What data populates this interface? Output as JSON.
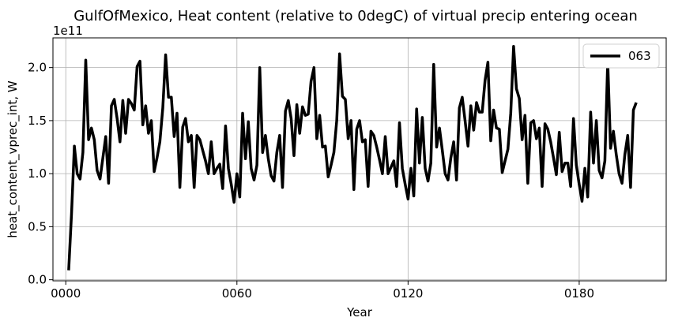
{
  "chart_data": {
    "type": "line",
    "title": "GulfOfMexico, Heat content (relative to 0degC) of virtual precip entering ocean",
    "xlabel": "Year",
    "ylabel": "heat_content_vprec_int, W",
    "y_scale_label": "1e11",
    "x_ticks": [
      "0000",
      "0060",
      "0120",
      "0180"
    ],
    "y_ticks": [
      "0.0",
      "0.5",
      "1.0",
      "1.5",
      "2.0"
    ],
    "xlim": [
      -4.5,
      210.5
    ],
    "ylim": [
      -0.01,
      2.28
    ],
    "grid": true,
    "legend_position": "top-right",
    "series": [
      {
        "name": "063",
        "color": "#000000",
        "x": [
          1,
          2,
          3,
          4,
          5,
          6,
          7,
          8,
          9,
          10,
          11,
          12,
          13,
          14,
          15,
          16,
          17,
          18,
          19,
          20,
          21,
          22,
          23,
          24,
          25,
          26,
          27,
          28,
          29,
          30,
          31,
          32,
          33,
          34,
          35,
          36,
          37,
          38,
          39,
          40,
          41,
          42,
          43,
          44,
          45,
          46,
          47,
          48,
          49,
          50,
          51,
          52,
          53,
          54,
          55,
          56,
          57,
          58,
          59,
          60,
          61,
          62,
          63,
          64,
          65,
          66,
          67,
          68,
          69,
          70,
          71,
          72,
          73,
          74,
          75,
          76,
          77,
          78,
          79,
          80,
          81,
          82,
          83,
          84,
          85,
          86,
          87,
          88,
          89,
          90,
          91,
          92,
          93,
          94,
          95,
          96,
          97,
          98,
          99,
          100,
          101,
          102,
          103,
          104,
          105,
          106,
          107,
          108,
          109,
          110,
          111,
          112,
          113,
          114,
          115,
          116,
          117,
          118,
          119,
          120,
          121,
          122,
          123,
          124,
          125,
          126,
          127,
          128,
          129,
          130,
          131,
          132,
          133,
          134,
          135,
          136,
          137,
          138,
          139,
          140,
          141,
          142,
          143,
          144,
          145,
          146,
          147,
          148,
          149,
          150,
          151,
          152,
          153,
          154,
          155,
          156,
          157,
          158,
          159,
          160,
          161,
          162,
          163,
          164,
          165,
          166,
          167,
          168,
          169,
          170,
          171,
          172,
          173,
          174,
          175,
          176,
          177,
          178,
          179,
          180,
          181,
          182,
          183,
          184,
          185,
          186,
          187,
          188,
          189,
          190,
          191,
          192,
          193,
          194,
          195,
          196,
          197,
          198,
          199,
          200
        ],
        "values": [
          0.09,
          0.62,
          1.26,
          1.0,
          0.95,
          1.2,
          2.07,
          1.32,
          1.43,
          1.32,
          1.03,
          0.95,
          1.15,
          1.35,
          0.91,
          1.64,
          1.7,
          1.52,
          1.3,
          1.69,
          1.38,
          1.7,
          1.66,
          1.6,
          2.01,
          2.06,
          1.46,
          1.64,
          1.38,
          1.5,
          1.02,
          1.15,
          1.3,
          1.62,
          2.12,
          1.72,
          1.72,
          1.35,
          1.57,
          0.87,
          1.44,
          1.52,
          1.3,
          1.36,
          0.87,
          1.36,
          1.32,
          1.22,
          1.12,
          1.0,
          1.3,
          1.0,
          1.05,
          1.09,
          0.86,
          1.45,
          1.05,
          0.9,
          0.73,
          1.0,
          0.78,
          1.57,
          1.14,
          1.49,
          1.05,
          0.94,
          1.08,
          2.0,
          1.2,
          1.36,
          1.14,
          0.98,
          0.93,
          1.2,
          1.36,
          0.87,
          1.59,
          1.69,
          1.52,
          1.17,
          1.65,
          1.38,
          1.63,
          1.55,
          1.56,
          1.87,
          2.0,
          1.33,
          1.55,
          1.25,
          1.26,
          0.97,
          1.08,
          1.2,
          1.5,
          2.13,
          1.73,
          1.7,
          1.33,
          1.5,
          0.85,
          1.42,
          1.5,
          1.3,
          1.32,
          0.88,
          1.4,
          1.36,
          1.25,
          1.13,
          1.0,
          1.35,
          1.0,
          1.06,
          1.12,
          0.88,
          1.48,
          1.05,
          0.9,
          0.76,
          1.05,
          0.79,
          1.61,
          1.1,
          1.53,
          1.05,
          0.93,
          1.1,
          2.03,
          1.25,
          1.43,
          1.22,
          1.0,
          0.94,
          1.15,
          1.3,
          0.94,
          1.62,
          1.72,
          1.5,
          1.26,
          1.64,
          1.41,
          1.67,
          1.58,
          1.58,
          1.88,
          2.05,
          1.31,
          1.6,
          1.43,
          1.42,
          1.01,
          1.12,
          1.23,
          1.57,
          2.2,
          1.8,
          1.71,
          1.32,
          1.55,
          0.91,
          1.48,
          1.5,
          1.33,
          1.43,
          0.88,
          1.47,
          1.42,
          1.3,
          1.15,
          0.99,
          1.39,
          1.02,
          1.1,
          1.1,
          0.88,
          1.52,
          1.08,
          0.9,
          0.74,
          1.05,
          0.78,
          1.58,
          1.1,
          1.5,
          1.03,
          0.96,
          1.12,
          2.06,
          1.24,
          1.4,
          1.18,
          1.0,
          0.91,
          1.18,
          1.36,
          0.87,
          1.6,
          1.67
        ]
      }
    ]
  }
}
